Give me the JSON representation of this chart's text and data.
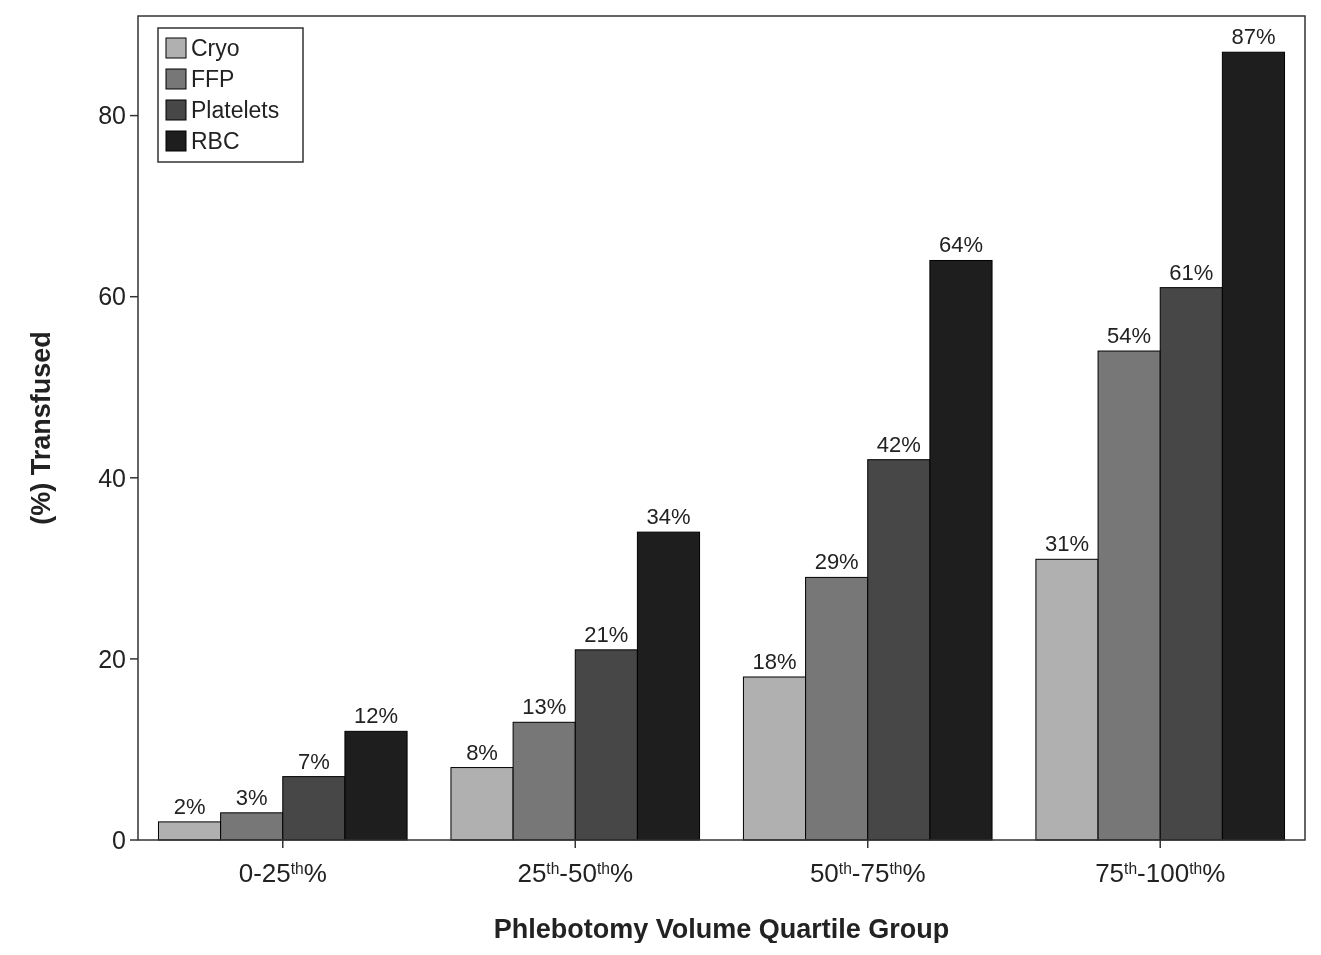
{
  "chart_data": {
    "type": "bar",
    "xlabel": "Phlebotomy Volume Quartile Group",
    "ylabel": "(%) Transfused",
    "categories": [
      "0-25$^{th}$%",
      "25$^{th}$-50$^{th}$%",
      "50$^{th}$-75$^{th}$%",
      "75$^{th}$-100$^{th}$%"
    ],
    "series": [
      {
        "name": "Cryo",
        "color": "#b0b0b0",
        "values": [
          2,
          8,
          18,
          31
        ],
        "value_labels": [
          "2%",
          "8%",
          "18%",
          "31%"
        ]
      },
      {
        "name": "FFP",
        "color": "#777777",
        "values": [
          3,
          13,
          29,
          54
        ],
        "value_labels": [
          "3%",
          "13%",
          "29%",
          "54%"
        ]
      },
      {
        "name": "Platelets",
        "color": "#474747",
        "values": [
          7,
          21,
          42,
          61
        ],
        "value_labels": [
          "7%",
          "21%",
          "42%",
          "61%"
        ]
      },
      {
        "name": "RBC",
        "color": "#1e1e1e",
        "values": [
          12,
          34,
          64,
          87
        ],
        "value_labels": [
          "12%",
          "34%",
          "64%",
          "87%"
        ]
      }
    ],
    "ylim": [
      0,
      91
    ],
    "yticks": [
      0,
      20,
      40,
      60,
      80
    ],
    "grid": false,
    "legend": "top left"
  }
}
